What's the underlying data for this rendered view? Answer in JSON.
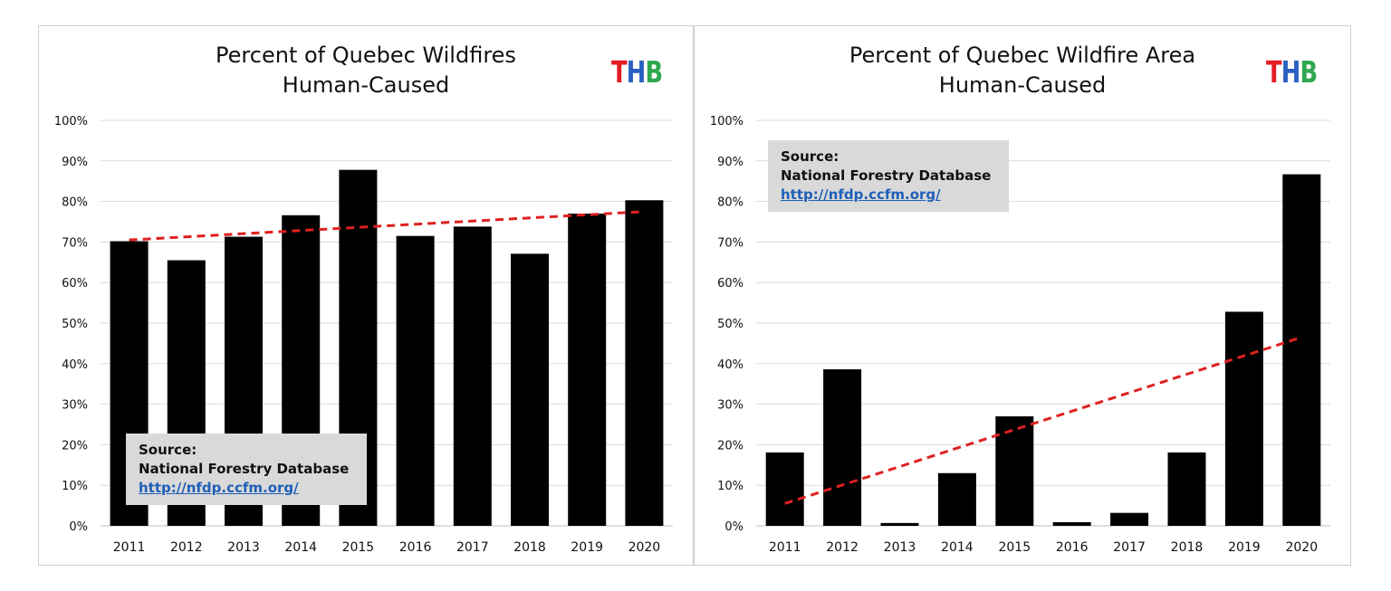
{
  "chart_data": [
    {
      "type": "bar",
      "title": [
        "Percent of Quebec Wildfires",
        "Human-Caused"
      ],
      "xlabel": "",
      "ylabel": "",
      "categories": [
        "2011",
        "2012",
        "2013",
        "2014",
        "2015",
        "2016",
        "2017",
        "2018",
        "2019",
        "2020"
      ],
      "values": [
        70.2,
        65.5,
        71.3,
        76.6,
        87.8,
        71.5,
        73.8,
        67.1,
        77.0,
        80.3
      ],
      "ylim": [
        0,
        100
      ],
      "yticks": [
        "0%",
        "10%",
        "20%",
        "30%",
        "40%",
        "50%",
        "60%",
        "70%",
        "80%",
        "90%",
        "100%"
      ],
      "grid": true,
      "bar_color": "#000000",
      "trendline": {
        "style": "dashed",
        "color": "#e02020",
        "start": 70.5,
        "end": 77.5
      },
      "logo": [
        "T",
        "H",
        "B"
      ],
      "logo_colors": [
        "#e31b23",
        "#2a5fc1",
        "#2fa84f"
      ],
      "source": {
        "label": "Source:",
        "name": "National Forestry Database",
        "link": "http://nfdp.ccfm.org/",
        "placement": "bottom-left"
      }
    },
    {
      "type": "bar",
      "title": [
        "Percent of Quebec Wildfire Area",
        "Human-Caused"
      ],
      "xlabel": "",
      "ylabel": "",
      "categories": [
        "2011",
        "2012",
        "2013",
        "2014",
        "2015",
        "2016",
        "2017",
        "2018",
        "2019",
        "2020"
      ],
      "values": [
        18.1,
        38.6,
        0.7,
        13.0,
        27.0,
        0.9,
        3.2,
        18.1,
        52.8,
        86.7
      ],
      "ylim": [
        0,
        100
      ],
      "yticks": [
        "0%",
        "10%",
        "20%",
        "30%",
        "40%",
        "50%",
        "60%",
        "70%",
        "80%",
        "90%",
        "100%"
      ],
      "grid": true,
      "bar_color": "#000000",
      "trendline": {
        "style": "dashed",
        "color": "#e02020",
        "start": 5.5,
        "end": 46.5
      },
      "logo": [
        "T",
        "H",
        "B"
      ],
      "logo_colors": [
        "#e31b23",
        "#2a5fc1",
        "#2fa84f"
      ],
      "source": {
        "label": "Source:",
        "name": "National Forestry Database",
        "link": "http://nfdp.ccfm.org/",
        "placement": "top-left"
      }
    }
  ]
}
